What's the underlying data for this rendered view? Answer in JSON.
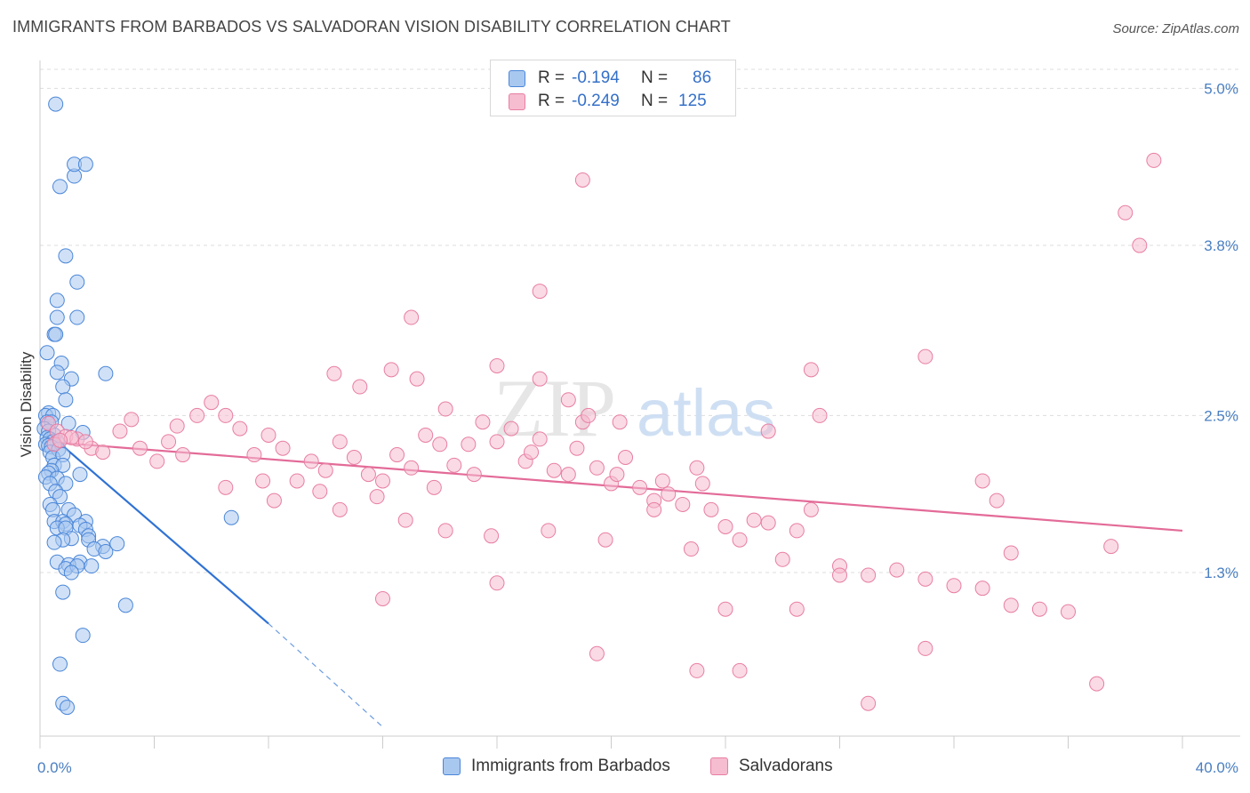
{
  "title": "IMMIGRANTS FROM BARBADOS VS SALVADORAN VISION DISABILITY CORRELATION CHART",
  "source": "Source: ZipAtlas.com",
  "watermark": {
    "zip": "ZIP",
    "atlas": "atlas"
  },
  "legend": {
    "rows": [
      {
        "r_label": "R =",
        "r_value": "-0.194",
        "n_label": "N =",
        "n_value": "86"
      },
      {
        "r_label": "R =",
        "r_value": "-0.249",
        "n_label": "N =",
        "n_value": "125"
      }
    ]
  },
  "bottom_legend": [
    "Immigrants from Barbados",
    "Salvadorans"
  ],
  "colors": {
    "blue_fill": "#a9c8f0",
    "blue_stroke": "#4a86d8",
    "blue_line": "#2f72d4",
    "pink_fill": "#f6bcd0",
    "pink_stroke": "#e87ea3",
    "pink_line": "#e36b98",
    "tick_text": "#4a7fc1",
    "grid": "#dddddd"
  },
  "chart_data": {
    "type": "scatter",
    "title": "IMMIGRANTS FROM BARBADOS VS SALVADORAN VISION DISABILITY CORRELATION CHART",
    "xlabel": "",
    "ylabel": "Vision Disability",
    "xlim": [
      0,
      40
    ],
    "ylim": [
      0.05,
      5.2
    ],
    "x_tick_labels": [
      "0.0%",
      "40.0%"
    ],
    "y_ticks": [
      1.3,
      2.5,
      3.8,
      5.0
    ],
    "y_tick_labels": [
      "1.3%",
      "2.5%",
      "3.8%",
      "5.0%"
    ],
    "grid": "horizontal dashed",
    "legend_position": "top-center",
    "series": [
      {
        "name": "Immigrants from Barbados",
        "r": -0.194,
        "n": 86,
        "trend": {
          "x": [
            0.2,
            8.0
          ],
          "y": [
            2.38,
            0.91
          ],
          "dashed_extension_to": [
            12.0,
            0.12
          ]
        },
        "points": [
          [
            0.55,
            4.88
          ],
          [
            0.7,
            4.25
          ],
          [
            1.2,
            4.33
          ],
          [
            1.2,
            4.42
          ],
          [
            1.6,
            4.42
          ],
          [
            0.9,
            3.72
          ],
          [
            1.3,
            3.52
          ],
          [
            0.6,
            3.38
          ],
          [
            0.6,
            3.25
          ],
          [
            1.3,
            3.25
          ],
          [
            0.5,
            3.12
          ],
          [
            0.55,
            3.12
          ],
          [
            0.25,
            2.98
          ],
          [
            0.75,
            2.9
          ],
          [
            0.6,
            2.83
          ],
          [
            1.1,
            2.78
          ],
          [
            2.3,
            2.82
          ],
          [
            0.8,
            2.72
          ],
          [
            0.9,
            2.62
          ],
          [
            0.3,
            2.52
          ],
          [
            0.2,
            2.5
          ],
          [
            0.45,
            2.5
          ],
          [
            0.25,
            2.45
          ],
          [
            0.4,
            2.45
          ],
          [
            1.0,
            2.44
          ],
          [
            0.15,
            2.4
          ],
          [
            0.3,
            2.38
          ],
          [
            0.5,
            2.35
          ],
          [
            0.25,
            2.33
          ],
          [
            0.35,
            2.32
          ],
          [
            0.45,
            2.3
          ],
          [
            0.6,
            2.3
          ],
          [
            0.2,
            2.28
          ],
          [
            0.3,
            2.27
          ],
          [
            0.4,
            2.26
          ],
          [
            1.5,
            2.37
          ],
          [
            0.35,
            2.22
          ],
          [
            0.65,
            2.24
          ],
          [
            0.45,
            2.18
          ],
          [
            0.8,
            2.2
          ],
          [
            0.5,
            2.12
          ],
          [
            0.8,
            2.12
          ],
          [
            0.4,
            2.08
          ],
          [
            0.3,
            2.06
          ],
          [
            0.2,
            2.03
          ],
          [
            0.6,
            2.02
          ],
          [
            1.4,
            2.05
          ],
          [
            0.9,
            1.98
          ],
          [
            0.35,
            1.98
          ],
          [
            0.55,
            1.92
          ],
          [
            0.7,
            1.88
          ],
          [
            0.35,
            1.82
          ],
          [
            0.45,
            1.78
          ],
          [
            1.0,
            1.78
          ],
          [
            1.2,
            1.74
          ],
          [
            0.5,
            1.69
          ],
          [
            0.8,
            1.69
          ],
          [
            0.9,
            1.67
          ],
          [
            1.6,
            1.69
          ],
          [
            1.4,
            1.66
          ],
          [
            0.6,
            1.64
          ],
          [
            0.9,
            1.64
          ],
          [
            1.6,
            1.63
          ],
          [
            1.7,
            1.58
          ],
          [
            1.7,
            1.55
          ],
          [
            1.1,
            1.56
          ],
          [
            0.8,
            1.55
          ],
          [
            0.5,
            1.53
          ],
          [
            2.2,
            1.5
          ],
          [
            1.9,
            1.48
          ],
          [
            2.3,
            1.46
          ],
          [
            2.7,
            1.52
          ],
          [
            0.6,
            1.38
          ],
          [
            1.4,
            1.38
          ],
          [
            1.0,
            1.36
          ],
          [
            1.8,
            1.35
          ],
          [
            0.9,
            1.33
          ],
          [
            1.3,
            1.35
          ],
          [
            1.1,
            1.3
          ],
          [
            0.8,
            1.15
          ],
          [
            3.0,
            1.05
          ],
          [
            1.5,
            0.82
          ],
          [
            0.7,
            0.6
          ],
          [
            0.8,
            0.3
          ],
          [
            0.95,
            0.27
          ],
          [
            6.7,
            1.72
          ]
        ]
      },
      {
        "name": "Salvadorans",
        "r": -0.249,
        "n": 125,
        "trend": {
          "x": [
            0.2,
            40.0
          ],
          "y": [
            2.3,
            1.62
          ]
        },
        "points": [
          [
            0.3,
            2.44
          ],
          [
            0.6,
            2.38
          ],
          [
            0.9,
            2.34
          ],
          [
            1.3,
            2.32
          ],
          [
            0.5,
            2.28
          ],
          [
            1.8,
            2.25
          ],
          [
            2.2,
            2.22
          ],
          [
            1.1,
            2.33
          ],
          [
            1.6,
            2.3
          ],
          [
            0.7,
            2.31
          ],
          [
            2.8,
            2.38
          ],
          [
            3.2,
            2.47
          ],
          [
            3.5,
            2.25
          ],
          [
            4.1,
            2.15
          ],
          [
            4.5,
            2.3
          ],
          [
            4.8,
            2.42
          ],
          [
            5.0,
            2.2
          ],
          [
            5.5,
            2.5
          ],
          [
            6.0,
            2.6
          ],
          [
            6.5,
            2.5
          ],
          [
            7.0,
            2.4
          ],
          [
            7.5,
            2.2
          ],
          [
            8.0,
            2.35
          ],
          [
            8.5,
            2.25
          ],
          [
            9.0,
            2.0
          ],
          [
            9.5,
            2.15
          ],
          [
            10.0,
            2.08
          ],
          [
            10.5,
            2.3
          ],
          [
            11.0,
            2.18
          ],
          [
            11.5,
            2.05
          ],
          [
            12.0,
            2.0
          ],
          [
            12.5,
            2.2
          ],
          [
            13.0,
            2.1
          ],
          [
            13.5,
            2.35
          ],
          [
            14.0,
            2.28
          ],
          [
            14.5,
            2.12
          ],
          [
            15.0,
            2.28
          ],
          [
            15.5,
            2.45
          ],
          [
            16.0,
            2.3
          ],
          [
            16.5,
            2.4
          ],
          [
            17.0,
            2.15
          ],
          [
            17.5,
            2.32
          ],
          [
            18.0,
            2.08
          ],
          [
            18.5,
            2.05
          ],
          [
            19.0,
            2.45
          ],
          [
            19.5,
            2.1
          ],
          [
            20.0,
            1.98
          ],
          [
            20.5,
            2.18
          ],
          [
            21.0,
            1.95
          ],
          [
            21.5,
            1.85
          ],
          [
            22.0,
            1.9
          ],
          [
            22.5,
            1.82
          ],
          [
            23.0,
            2.1
          ],
          [
            23.5,
            1.78
          ],
          [
            24.0,
            1.65
          ],
          [
            24.5,
            1.55
          ],
          [
            25.0,
            1.7
          ],
          [
            25.5,
            1.68
          ],
          [
            26.0,
            1.4
          ],
          [
            26.5,
            1.62
          ],
          [
            27.0,
            1.78
          ],
          [
            28.0,
            1.35
          ],
          [
            29.0,
            1.28
          ],
          [
            30.0,
            1.32
          ],
          [
            31.0,
            1.25
          ],
          [
            32.0,
            1.2
          ],
          [
            33.0,
            1.18
          ],
          [
            34.0,
            1.05
          ],
          [
            35.0,
            1.02
          ],
          [
            36.0,
            1.0
          ],
          [
            6.5,
            1.95
          ],
          [
            8.2,
            1.85
          ],
          [
            10.5,
            1.78
          ],
          [
            12.8,
            1.7
          ],
          [
            14.2,
            1.62
          ],
          [
            15.8,
            1.58
          ],
          [
            17.8,
            1.62
          ],
          [
            19.8,
            1.55
          ],
          [
            21.5,
            1.78
          ],
          [
            22.8,
            1.48
          ],
          [
            7.8,
            2.0
          ],
          [
            9.8,
            1.92
          ],
          [
            11.8,
            1.88
          ],
          [
            13.8,
            1.95
          ],
          [
            15.2,
            2.05
          ],
          [
            17.2,
            2.22
          ],
          [
            18.8,
            2.25
          ],
          [
            20.2,
            2.05
          ],
          [
            21.8,
            2.0
          ],
          [
            23.2,
            1.98
          ],
          [
            10.3,
            2.82
          ],
          [
            11.2,
            2.72
          ],
          [
            12.3,
            2.85
          ],
          [
            13.2,
            2.78
          ],
          [
            14.2,
            2.55
          ],
          [
            16.0,
            2.88
          ],
          [
            17.5,
            2.78
          ],
          [
            18.5,
            2.62
          ],
          [
            19.2,
            2.5
          ],
          [
            20.3,
            2.45
          ],
          [
            13.0,
            3.25
          ],
          [
            17.5,
            3.45
          ],
          [
            19.0,
            4.3
          ],
          [
            27.0,
            2.85
          ],
          [
            31.0,
            2.95
          ],
          [
            25.5,
            2.38
          ],
          [
            27.3,
            2.5
          ],
          [
            33.0,
            2.0
          ],
          [
            33.5,
            1.85
          ],
          [
            34.0,
            1.45
          ],
          [
            37.5,
            1.5
          ],
          [
            38.0,
            4.05
          ],
          [
            38.5,
            3.8
          ],
          [
            39.0,
            4.45
          ],
          [
            29.0,
            0.3
          ],
          [
            31.0,
            0.72
          ],
          [
            37.0,
            0.45
          ],
          [
            19.5,
            0.68
          ],
          [
            23.0,
            0.55
          ],
          [
            24.5,
            0.55
          ],
          [
            24.0,
            1.02
          ],
          [
            26.5,
            1.02
          ],
          [
            28.0,
            1.28
          ],
          [
            12.0,
            1.1
          ],
          [
            16.0,
            1.22
          ]
        ]
      }
    ]
  }
}
